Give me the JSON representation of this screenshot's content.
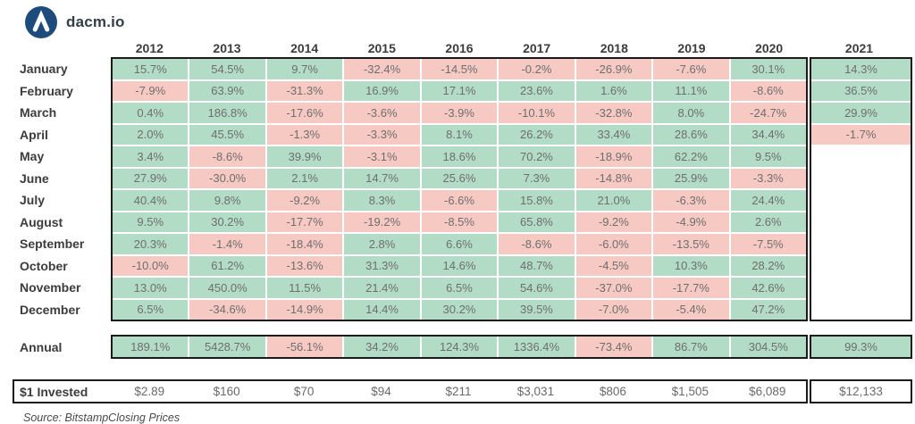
{
  "brand": {
    "name": "dacm.io",
    "logo_icon": "caret-up-circle-icon",
    "logo_color": "#1d4b7c"
  },
  "colors": {
    "positive": "#b3dcc6",
    "negative": "#f7c9c3",
    "border": "#1b1b1b",
    "cell_text": "#6e6e6e",
    "label_text": "#3c3c3c"
  },
  "source": "Source: BitstampClosing Prices",
  "chart_data": {
    "type": "heatmap",
    "title": "Bitcoin monthly returns by year",
    "legend_position": "none",
    "color_rule": "green = positive return, pink = negative return, white = no data",
    "years": [
      "2012",
      "2013",
      "2014",
      "2015",
      "2016",
      "2017",
      "2018",
      "2019",
      "2020",
      "2021"
    ],
    "months": [
      "January",
      "February",
      "March",
      "April",
      "May",
      "June",
      "July",
      "August",
      "September",
      "October",
      "November",
      "December"
    ],
    "returns": [
      [
        "15.7%",
        "54.5%",
        "9.7%",
        "-32.4%",
        "-14.5%",
        "-0.2%",
        "-26.9%",
        "-7.6%",
        "30.1%",
        "14.3%"
      ],
      [
        "-7.9%",
        "63.9%",
        "-31.3%",
        "16.9%",
        "17.1%",
        "23.6%",
        "1.6%",
        "11.1%",
        "-8.6%",
        "36.5%"
      ],
      [
        "0.4%",
        "186.8%",
        "-17.6%",
        "-3.6%",
        "-3.9%",
        "-10.1%",
        "-32.8%",
        "8.0%",
        "-24.7%",
        "29.9%"
      ],
      [
        "2.0%",
        "45.5%",
        "-1.3%",
        "-3.3%",
        "8.1%",
        "26.2%",
        "33.4%",
        "28.6%",
        "34.4%",
        "-1.7%"
      ],
      [
        "3.4%",
        "-8.6%",
        "39.9%",
        "-3.1%",
        "18.6%",
        "70.2%",
        "-18.9%",
        "62.2%",
        "9.5%",
        null
      ],
      [
        "27.9%",
        "-30.0%",
        "2.1%",
        "14.7%",
        "25.6%",
        "7.3%",
        "-14.8%",
        "25.9%",
        "-3.3%",
        null
      ],
      [
        "40.4%",
        "9.8%",
        "-9.2%",
        "8.3%",
        "-6.6%",
        "15.8%",
        "21.0%",
        "-6.3%",
        "24.4%",
        null
      ],
      [
        "9.5%",
        "30.2%",
        "-17.7%",
        "-19.2%",
        "-8.5%",
        "65.8%",
        "-9.2%",
        "-4.9%",
        "2.6%",
        null
      ],
      [
        "20.3%",
        "-1.4%",
        "-18.4%",
        "2.8%",
        "6.6%",
        "-8.6%",
        "-6.0%",
        "-13.5%",
        "-7.5%",
        null
      ],
      [
        "-10.0%",
        "61.2%",
        "-13.6%",
        "31.3%",
        "14.6%",
        "48.7%",
        "-4.5%",
        "10.3%",
        "28.2%",
        null
      ],
      [
        "13.0%",
        "450.0%",
        "11.5%",
        "21.4%",
        "6.5%",
        "54.6%",
        "-37.0%",
        "-17.7%",
        "42.6%",
        null
      ],
      [
        "6.5%",
        "-34.6%",
        "-14.9%",
        "14.4%",
        "30.2%",
        "39.5%",
        "-7.0%",
        "-5.4%",
        "47.2%",
        null
      ]
    ],
    "annual": {
      "label": "Annual",
      "values": [
        "189.1%",
        "5428.7%",
        "-56.1%",
        "34.2%",
        "124.3%",
        "1336.4%",
        "-73.4%",
        "86.7%",
        "304.5%",
        "99.3%"
      ]
    },
    "invested": {
      "label": "$1 Invested",
      "values": [
        "$2.89",
        "$160",
        "$70",
        "$94",
        "$211",
        "$3,031",
        "$806",
        "$1,505",
        "$6,089",
        "$12,133"
      ]
    }
  }
}
